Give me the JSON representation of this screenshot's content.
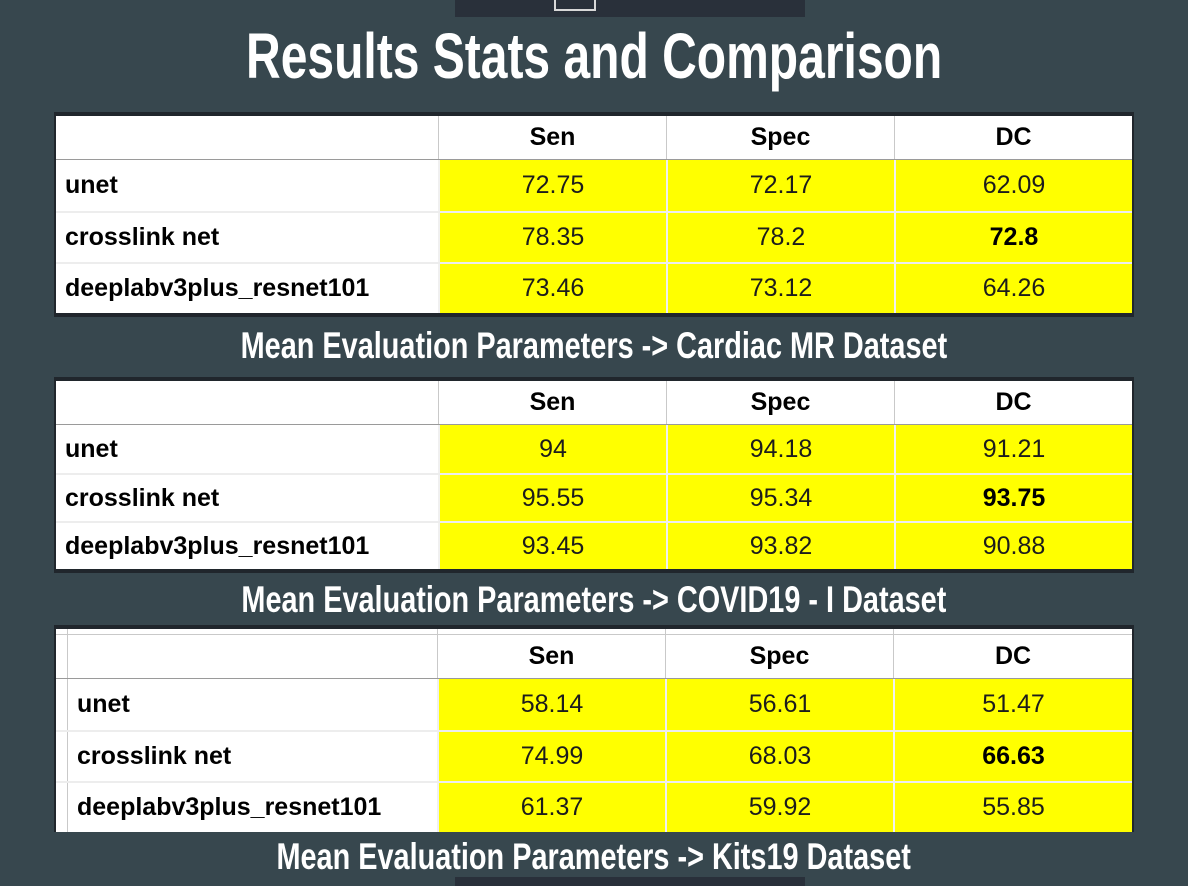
{
  "title": "Results Stats and Comparison",
  "title_bar": {
    "icon": "window-outline-icon"
  },
  "colors": {
    "background": "#37474e",
    "toolbar": "#29303a",
    "highlight": "#ffff00",
    "table_background": "#ffffff",
    "title_text": "#ffffff",
    "value_text": "#1c1c1c"
  },
  "tables": [
    {
      "caption": "Mean Evaluation Parameters -> Cardiac MR Dataset",
      "columns": [
        "Sen",
        "Spec",
        "DC"
      ],
      "rows": [
        {
          "model": "unet",
          "sen": "72.75",
          "spec": "72.17",
          "dc": "62.09",
          "dc_bold": false
        },
        {
          "model": "crosslink net",
          "sen": "78.35",
          "spec": "78.2",
          "dc": "72.8",
          "dc_bold": true
        },
        {
          "model": "deeplabv3plus_resnet101",
          "sen": "73.46",
          "spec": "73.12",
          "dc": "64.26",
          "dc_bold": false
        }
      ]
    },
    {
      "caption": "Mean Evaluation Parameters -> COVID19 - I Dataset",
      "columns": [
        "Sen",
        "Spec",
        "DC"
      ],
      "rows": [
        {
          "model": "unet",
          "sen": "94",
          "spec": "94.18",
          "dc": "91.21",
          "dc_bold": false
        },
        {
          "model": "crosslink net",
          "sen": "95.55",
          "spec": "95.34",
          "dc": "93.75",
          "dc_bold": true
        },
        {
          "model": "deeplabv3plus_resnet101",
          "sen": "93.45",
          "spec": "93.82",
          "dc": "90.88",
          "dc_bold": false
        }
      ]
    },
    {
      "caption": "Mean Evaluation Parameters -> Kits19 Dataset",
      "columns": [
        "Sen",
        "Spec",
        "DC"
      ],
      "rows": [
        {
          "model": "unet",
          "sen": "58.14",
          "spec": "56.61",
          "dc": "51.47",
          "dc_bold": false
        },
        {
          "model": "crosslink net",
          "sen": "74.99",
          "spec": "68.03",
          "dc": "66.63",
          "dc_bold": true
        },
        {
          "model": "deeplabv3plus_resnet101",
          "sen": "61.37",
          "spec": "59.92",
          "dc": "55.85",
          "dc_bold": false
        }
      ]
    }
  ]
}
